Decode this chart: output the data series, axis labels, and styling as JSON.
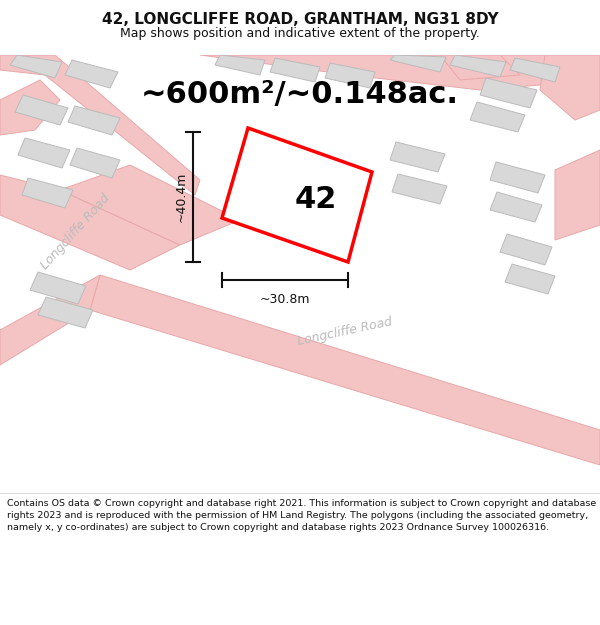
{
  "title_line1": "42, LONGCLIFFE ROAD, GRANTHAM, NG31 8DY",
  "title_line2": "Map shows position and indicative extent of the property.",
  "area_label": "~600m²/~0.148ac.",
  "number_label": "42",
  "dim_vertical": "~40.4m",
  "dim_horizontal": "~30.8m",
  "footer_text": "Contains OS data © Crown copyright and database right 2021. This information is subject to Crown copyright and database rights 2023 and is reproduced with the permission of HM Land Registry. The polygons (including the associated geometry, namely x, y co-ordinates) are subject to Crown copyright and database rights 2023 Ordnance Survey 100026316.",
  "map_bg": "#eeeeee",
  "road_fill": "#f4c4c4",
  "road_edge": "#e8a8a8",
  "building_fill": "#d8d8d8",
  "building_edge": "#bbbbbb",
  "plot_color": "#ff0000",
  "dim_color": "#111111",
  "road_label_color": "#bbbbbb",
  "title_color": "#111111",
  "footer_color": "#111111",
  "figsize": [
    6.0,
    6.25
  ],
  "dpi": 100,
  "title_fontsize": 11,
  "subtitle_fontsize": 9,
  "area_fontsize": 22,
  "number_fontsize": 22,
  "dim_fontsize": 9,
  "road_label_fontsize": 9,
  "footer_fontsize": 6.8
}
